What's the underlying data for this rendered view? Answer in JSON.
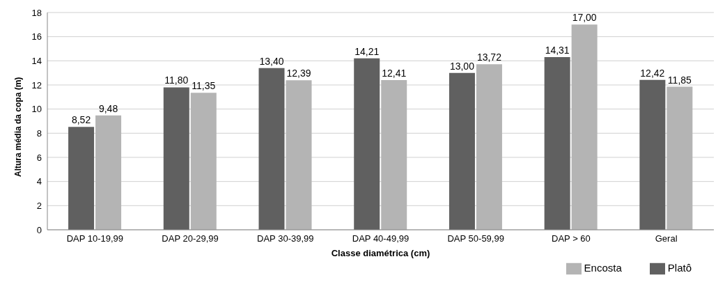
{
  "chart_data": {
    "type": "bar",
    "xlabel": "Classe diamétrica (cm)",
    "ylabel": "Altura média da copa (m)",
    "categories": [
      "DAP 10-19,99",
      "DAP 20-29,99",
      "DAP 30-39,99",
      "DAP 40-49,99",
      "DAP 50-59,99",
      "DAP > 60",
      "Geral"
    ],
    "series": [
      {
        "name": "Platô",
        "color": "#606060",
        "values": [
          8.52,
          11.8,
          13.4,
          14.21,
          13.0,
          14.31,
          12.42
        ],
        "value_labels": [
          "8,52",
          "11,80",
          "13,40",
          "14,21",
          "13,00",
          "14,31",
          "12,42"
        ]
      },
      {
        "name": "Encosta",
        "color": "#b4b4b4",
        "values": [
          9.48,
          11.35,
          12.39,
          12.41,
          13.72,
          17.0,
          11.85
        ],
        "value_labels": [
          "9,48",
          "11,35",
          "12,39",
          "12,41",
          "13,72",
          "17,00",
          "11,85"
        ]
      }
    ],
    "ylim": [
      0,
      18
    ],
    "yticks": [
      0,
      2,
      4,
      6,
      8,
      10,
      12,
      14,
      16,
      18
    ],
    "grid": "y",
    "legend": "bottom right"
  }
}
